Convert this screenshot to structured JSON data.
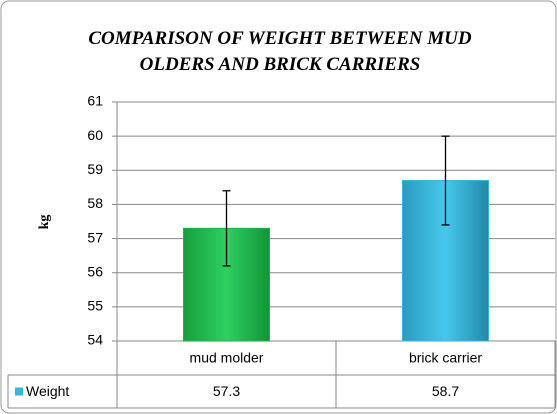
{
  "chart_data": {
    "type": "bar",
    "title": "COMPARISON OF WEIGHT BETWEEN MUD OLDERS AND BRICK CARRIERS",
    "y_label": "kg",
    "categories": [
      "mud molder",
      "brick carrier"
    ],
    "series": [
      {
        "name": "Weight",
        "colors": [
          "#1fb24a",
          "#35b6dc"
        ],
        "values": [
          57.3,
          58.7
        ],
        "errors": [
          1.1,
          1.3
        ]
      }
    ],
    "ylim": [
      54,
      61
    ],
    "yticks": [
      54,
      55,
      56,
      57,
      58,
      59,
      60,
      61
    ],
    "grid": true,
    "data_table": true
  }
}
